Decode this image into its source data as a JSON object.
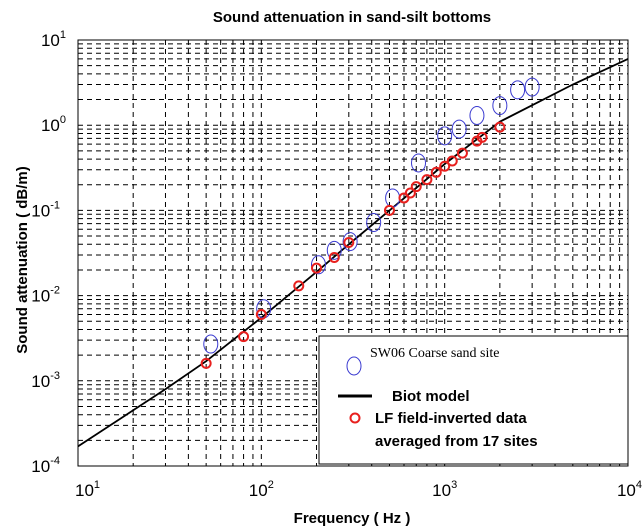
{
  "chart_data": {
    "type": "scatter",
    "title": "Sound attenuation in sand-silt bottoms",
    "xlabel": "Frequency ( Hz )",
    "ylabel": "Sound attenuation ( dB/m)",
    "xscale": "log",
    "yscale": "log",
    "xlim": [
      10,
      10000
    ],
    "ylim": [
      0.0001,
      10
    ],
    "grid": "dashed major and minor",
    "legend_position": "bottom-right",
    "x_ticks": [
      {
        "base": "10",
        "exp": "1"
      },
      {
        "base": "10",
        "exp": "2"
      },
      {
        "base": "10",
        "exp": "3"
      },
      {
        "base": "10",
        "exp": "4"
      }
    ],
    "y_ticks": [
      {
        "base": "10",
        "exp": "-4"
      },
      {
        "base": "10",
        "exp": "-3"
      },
      {
        "base": "10",
        "exp": "-2"
      },
      {
        "base": "10",
        "exp": "-1"
      },
      {
        "base": "10",
        "exp": "0"
      },
      {
        "base": "10",
        "exp": "1"
      }
    ],
    "series": [
      {
        "name": "SW06 Coarse sand site",
        "marker": "open-ellipse",
        "color": "#3a3ad0",
        "points": [
          [
            53,
            0.0027
          ],
          [
            103,
            0.007
          ],
          [
            205,
            0.023
          ],
          [
            250,
            0.034
          ],
          [
            305,
            0.043
          ],
          [
            410,
            0.072
          ],
          [
            520,
            0.14
          ],
          [
            720,
            0.36
          ],
          [
            1000,
            0.75
          ],
          [
            1200,
            0.9
          ],
          [
            1500,
            1.3
          ],
          [
            2000,
            1.7
          ],
          [
            2500,
            2.6
          ],
          [
            3000,
            2.8
          ]
        ]
      },
      {
        "name": "Biot model",
        "marker": "line",
        "color": "#000000",
        "points": [
          [
            10,
            0.00017
          ],
          [
            20,
            0.00045
          ],
          [
            30,
            0.0008
          ],
          [
            50,
            0.0017
          ],
          [
            100,
            0.0055
          ],
          [
            200,
            0.019
          ],
          [
            300,
            0.04
          ],
          [
            500,
            0.1
          ],
          [
            1000,
            0.35
          ],
          [
            2000,
            1.1
          ],
          [
            5000,
            3.0
          ],
          [
            10000,
            6.0
          ]
        ]
      },
      {
        "name": "LF field-inverted data averaged from 17 sites",
        "name_lines": [
          "LF field-inverted data",
          "averaged from 17 sites"
        ],
        "marker": "open-circle",
        "color": "#e8201e",
        "points": [
          [
            50,
            0.0016
          ],
          [
            80,
            0.0033
          ],
          [
            100,
            0.006
          ],
          [
            160,
            0.013
          ],
          [
            200,
            0.021
          ],
          [
            250,
            0.028
          ],
          [
            300,
            0.042
          ],
          [
            500,
            0.1
          ],
          [
            600,
            0.14
          ],
          [
            650,
            0.16
          ],
          [
            700,
            0.19
          ],
          [
            800,
            0.23
          ],
          [
            900,
            0.28
          ],
          [
            1000,
            0.33
          ],
          [
            1100,
            0.38
          ],
          [
            1250,
            0.47
          ],
          [
            1500,
            0.65
          ],
          [
            1600,
            0.72
          ],
          [
            2000,
            0.95
          ]
        ]
      }
    ]
  }
}
